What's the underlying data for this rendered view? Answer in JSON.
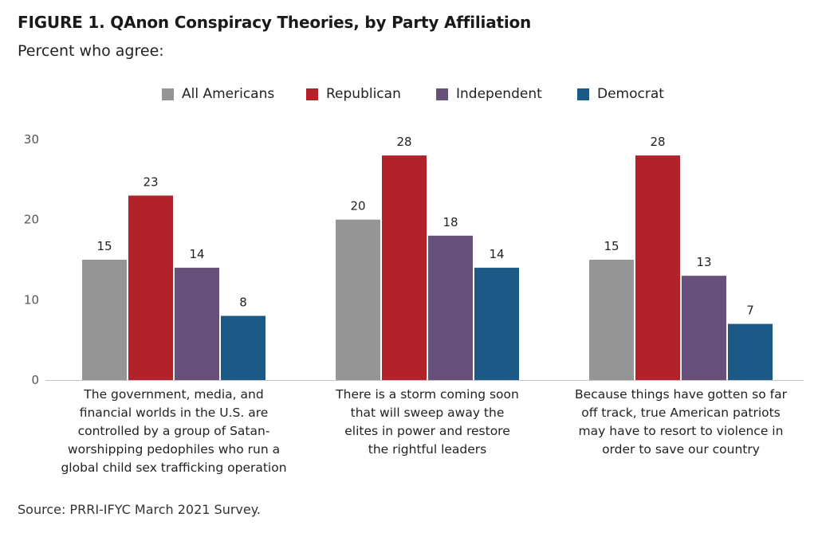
{
  "header": {
    "title": "FIGURE 1. QAnon Conspiracy Theories, by Party Affiliation",
    "subtitle": "Percent who agree:"
  },
  "footer": {
    "source": "Source: PRRI-IFYC March 2021 Survey."
  },
  "chart_data": {
    "type": "bar",
    "title": "FIGURE 1. QAnon Conspiracy Theories, by Party Affiliation",
    "subtitle": "Percent who agree:",
    "xlabel": "",
    "ylabel": "",
    "ylim": [
      0,
      30
    ],
    "yticks": [
      0,
      10,
      20,
      30
    ],
    "grid": false,
    "legend_position": "top-center",
    "categories": [
      [
        "The government, media, and",
        "financial worlds in the U.S. are",
        "controlled by a group of Satan-",
        "worshipping pedophiles who run a",
        "global child sex trafficking operation"
      ],
      [
        "There is a storm coming soon",
        "that will sweep away the",
        "elites in power and restore",
        "the rightful leaders"
      ],
      [
        "Because things have gotten so far",
        "off track, true American patriots",
        "may have to resort to violence in",
        "order to save our country"
      ]
    ],
    "series": [
      {
        "name": "All Americans",
        "color": "#959595",
        "values": [
          15,
          20,
          15
        ]
      },
      {
        "name": "Republican",
        "color": "#b2222a",
        "values": [
          23,
          28,
          28
        ]
      },
      {
        "name": "Independent",
        "color": "#67507a",
        "values": [
          14,
          18,
          13
        ]
      },
      {
        "name": "Democrat",
        "color": "#1c5986",
        "values": [
          8,
          14,
          7
        ]
      }
    ]
  }
}
